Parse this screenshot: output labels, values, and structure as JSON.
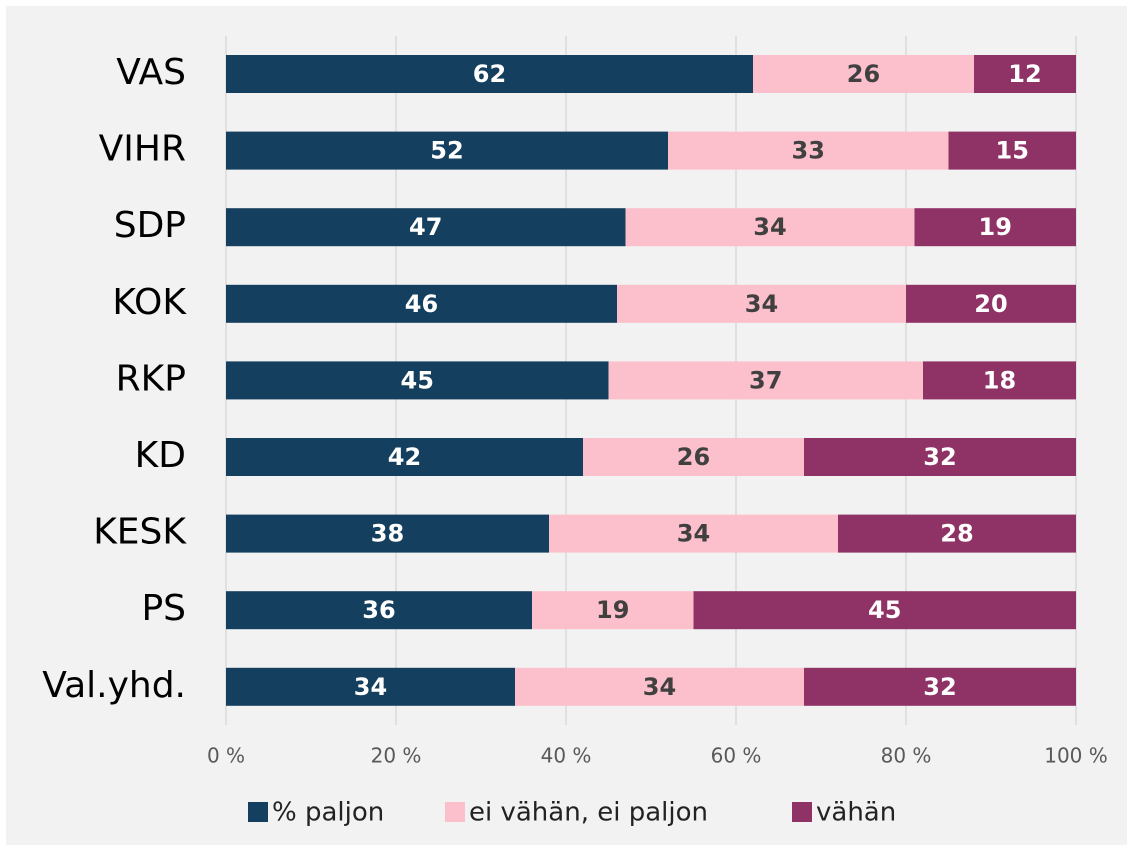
{
  "chart_data": {
    "type": "stacked-bar-horizontal",
    "categories": [
      "VAS",
      "VIHR",
      "SDP",
      "KOK",
      "RKP",
      "KD",
      "KESK",
      "PS",
      "Val.yhd."
    ],
    "series": [
      {
        "name": "% paljon",
        "color": "#143f5e",
        "label_color": "#ffffff",
        "values": [
          62,
          52,
          47,
          46,
          45,
          42,
          38,
          36,
          34
        ]
      },
      {
        "name": "ei vähän, ei paljon",
        "color": "#fcc0cc",
        "label_color": "#404040",
        "values": [
          26,
          33,
          34,
          34,
          37,
          26,
          34,
          19,
          34
        ]
      },
      {
        "name": "vähän",
        "color": "#8f3265",
        "label_color": "#ffffff",
        "values": [
          12,
          15,
          19,
          20,
          18,
          32,
          28,
          45,
          32
        ]
      }
    ],
    "xlim": [
      0,
      100
    ],
    "xticks": [
      {
        "value": 0,
        "label": "0 %"
      },
      {
        "value": 20,
        "label": "20 %"
      },
      {
        "value": 40,
        "label": "40 %"
      },
      {
        "value": 60,
        "label": "60 %"
      },
      {
        "value": 80,
        "label": "80 %"
      },
      {
        "value": 100,
        "label": "100 %"
      }
    ],
    "grid": true,
    "legend": "bottom"
  }
}
